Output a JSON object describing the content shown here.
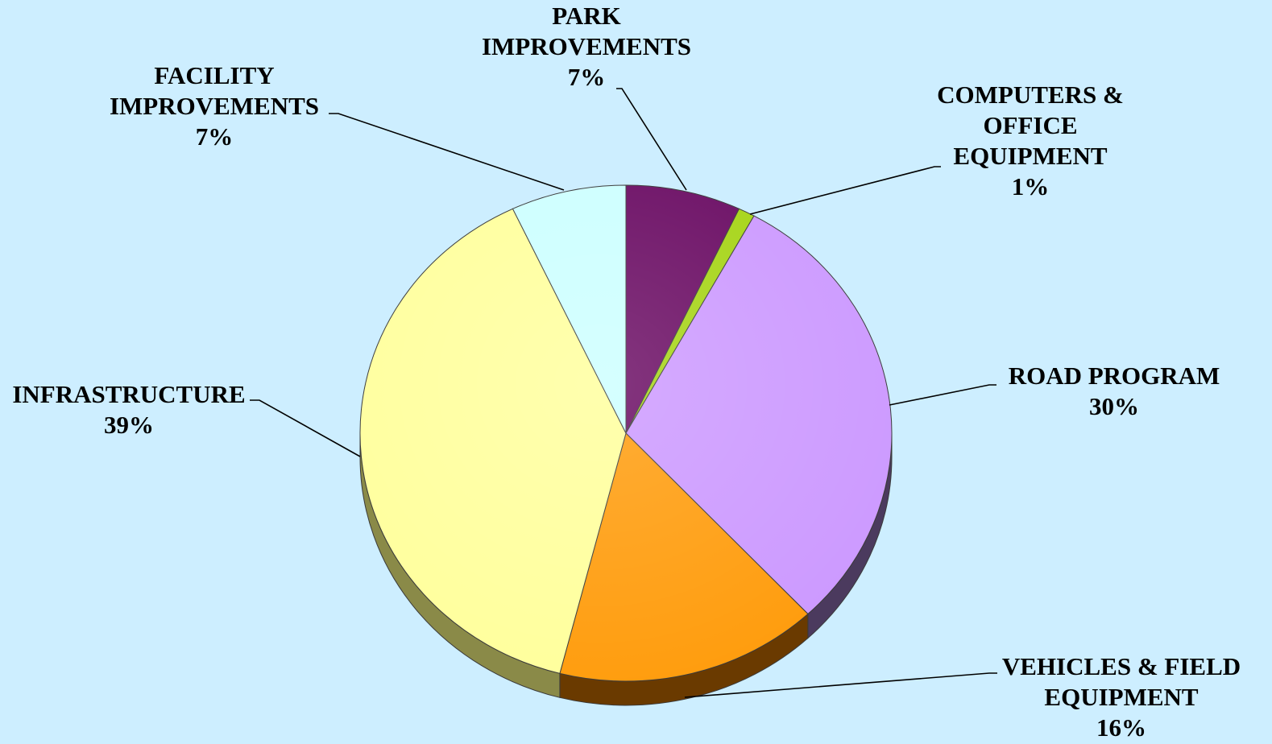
{
  "chart_data": {
    "type": "pie",
    "title": "",
    "style": "3d",
    "slices": [
      {
        "label": [
          "PARK",
          "IMPROVEMENTS"
        ],
        "pct_text": "7%",
        "value": 7,
        "color": "#690a62",
        "side": "#3d0438"
      },
      {
        "label": [
          "COMPUTERS &",
          "OFFICE",
          "EQUIPMENT"
        ],
        "pct_text": "1%",
        "value": 1,
        "color": "#a5d414",
        "side": "#5e7c08"
      },
      {
        "label": [
          "ROAD PROGRAM"
        ],
        "pct_text": "30%",
        "value": 30,
        "color": "#cc99ff",
        "side": "#4b3a5e"
      },
      {
        "label": [
          "VEHICLES & FIELD",
          "EQUIPMENT"
        ],
        "pct_text": "16%",
        "value": 16,
        "color": "#ff9c0c",
        "side": "#6a3a00"
      },
      {
        "label": [
          "INFRASTRUCTURE"
        ],
        "pct_text": "39%",
        "value": 39,
        "color": "#ffff9c",
        "side": "#8a8a48"
      },
      {
        "label": [
          "FACILITY",
          "IMPROVEMENTS"
        ],
        "pct_text": "7%",
        "value": 7,
        "color": "#ccffff",
        "side": "#6f8f8f"
      }
    ]
  }
}
